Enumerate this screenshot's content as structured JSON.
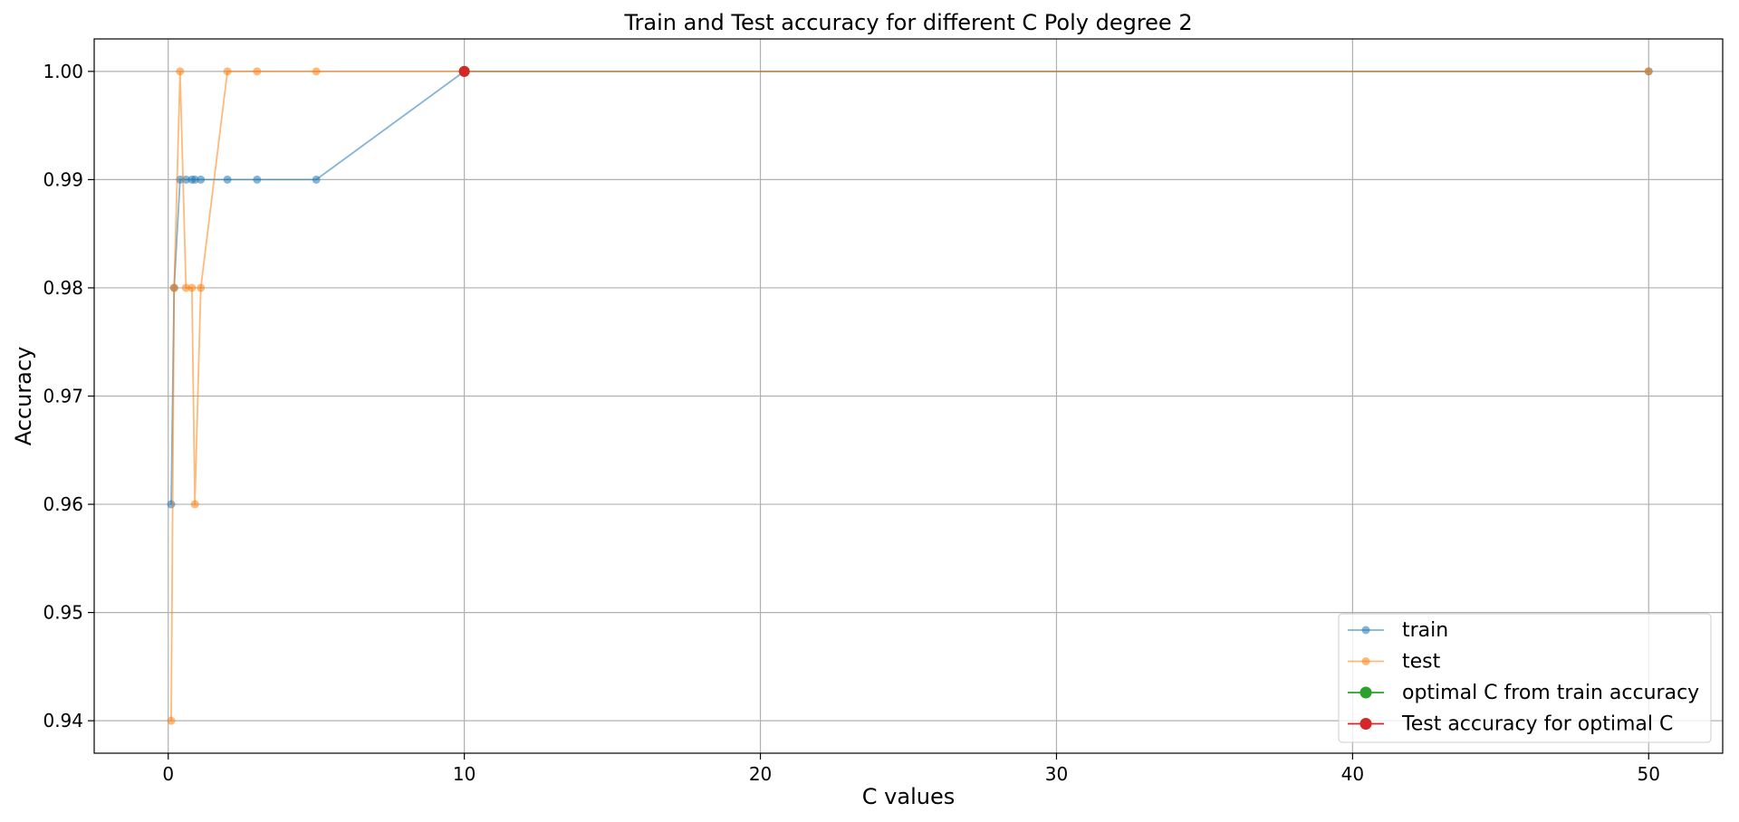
{
  "chart_data": {
    "type": "line",
    "title": "Train and Test accuracy for different C Poly degree 2",
    "xlabel": "C values",
    "ylabel": "Accuracy",
    "xlim": [
      -2.5,
      52.5
    ],
    "ylim": [
      0.937,
      1.003
    ],
    "xticks": [
      0,
      10,
      20,
      30,
      40,
      50
    ],
    "xtick_labels": [
      "0",
      "10",
      "20",
      "30",
      "40",
      "50"
    ],
    "yticks": [
      0.94,
      0.95,
      0.96,
      0.97,
      0.98,
      0.99,
      1.0
    ],
    "ytick_labels": [
      "0.94",
      "0.95",
      "0.96",
      "0.97",
      "0.98",
      "0.99",
      "1.00"
    ],
    "grid": true,
    "legend_position": "lower-right",
    "series": [
      {
        "name": "train",
        "color": "#1f77b4",
        "marker": "circle",
        "x": [
          0.1,
          0.2,
          0.4,
          0.6,
          0.8,
          0.9,
          1.1,
          2,
          3,
          5,
          10,
          50
        ],
        "y": [
          0.96,
          0.98,
          0.99,
          0.99,
          0.99,
          0.99,
          0.99,
          0.99,
          0.99,
          0.99,
          1.0,
          1.0
        ]
      },
      {
        "name": "test",
        "color": "#ff7f0e",
        "marker": "circle",
        "x": [
          0.1,
          0.2,
          0.4,
          0.6,
          0.8,
          0.9,
          1.1,
          2,
          3,
          5,
          10,
          50
        ],
        "y": [
          0.94,
          0.98,
          1.0,
          0.98,
          0.98,
          0.96,
          0.98,
          1.0,
          1.0,
          1.0,
          1.0,
          1.0
        ]
      },
      {
        "name": "optimal C from train accuracy",
        "color": "#2ca02c",
        "marker": "circle",
        "x": [
          10
        ],
        "y": [
          1.0
        ]
      },
      {
        "name": "Test accuracy for optimal C",
        "color": "#d62728",
        "marker": "circle",
        "x": [
          10
        ],
        "y": [
          1.0
        ]
      }
    ]
  }
}
